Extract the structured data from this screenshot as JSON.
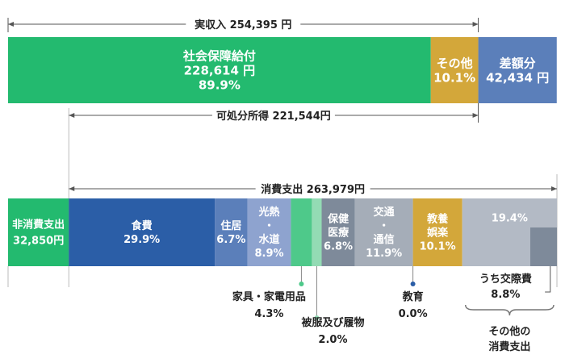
{
  "chart_data": {
    "type": "bar",
    "income": {
      "title": "実収入 254,395 円",
      "disposable_label": "可処分所得 221,544円",
      "segments": [
        {
          "key": "social",
          "lines": [
            "社会保障給付",
            "228,614 円",
            "89.9%"
          ],
          "value": 228614,
          "percent": 89.9,
          "color": "#23ba6f",
          "text_color": "#ffffff"
        },
        {
          "key": "other_income",
          "lines": [
            "その他",
            "10.1%"
          ],
          "percent": 10.1,
          "color": "#d3a73a",
          "text_color": "#ffffff"
        },
        {
          "key": "deficit",
          "lines": [
            "差額分",
            "42,434 円"
          ],
          "value": 42434,
          "color": "#5b7fba",
          "text_color": "#ffffff"
        }
      ]
    },
    "expenditure": {
      "title": "消費支出 263,979円",
      "segments": [
        {
          "key": "non_consumption",
          "lines": [
            "非消費支出",
            "32,850円"
          ],
          "value": 32850,
          "color": "#23ba6f",
          "text_color": "#ffffff"
        },
        {
          "key": "food",
          "lines": [
            "食費",
            "29.9%"
          ],
          "percent": 29.9,
          "color": "#2b5ea7",
          "text_color": "#ffffff"
        },
        {
          "key": "housing",
          "lines": [
            "住居",
            "6.7%"
          ],
          "percent": 6.7,
          "color": "#5b7fba",
          "text_color": "#ffffff"
        },
        {
          "key": "utilities",
          "lines": [
            "光熱",
            "・",
            "水道",
            "8.9%"
          ],
          "percent": 8.9,
          "color": "#8ea3cf",
          "text_color": "#ffffff"
        },
        {
          "key": "furniture",
          "lines": [],
          "percent": 4.3,
          "color": "#4ec98a",
          "text_color": "#ffffff"
        },
        {
          "key": "clothing",
          "lines": [],
          "percent": 2.0,
          "color": "#93dbb4",
          "text_color": "#ffffff"
        },
        {
          "key": "health",
          "lines": [
            "保健",
            "医療",
            "6.8%"
          ],
          "percent": 6.8,
          "color": "#7e8a9a",
          "text_color": "#ffffff"
        },
        {
          "key": "transport",
          "lines": [
            "交通",
            "・",
            "通信",
            "11.9%"
          ],
          "percent": 11.9,
          "color": "#a5adb8",
          "text_color": "#ffffff"
        },
        {
          "key": "education",
          "lines": [],
          "percent": 0.0,
          "color": "#2b5ea7",
          "text_color": "#ffffff"
        },
        {
          "key": "recreation",
          "lines": [
            "教養",
            "娯楽",
            "10.1%"
          ],
          "percent": 10.1,
          "color": "#d3a73a",
          "text_color": "#ffffff"
        },
        {
          "key": "other_consumption",
          "lines": [
            "19.4%"
          ],
          "percent": 19.4,
          "color": "#b3bac5",
          "text_color": "#ffffff"
        }
      ],
      "sub_segment": {
        "parent": "other_consumption",
        "lines": [
          "うち交際費",
          "8.8%"
        ],
        "percent": 8.8,
        "color": "#7e8a9a"
      },
      "callouts": [
        {
          "target": "furniture",
          "lines": [
            "家具・家電用品",
            "4.3%"
          ]
        },
        {
          "target": "clothing",
          "lines": [
            "被服及び履物",
            "2.0%"
          ]
        },
        {
          "target": "education",
          "lines": [
            "教育",
            "0.0%"
          ]
        }
      ],
      "brace_label": [
        "その他の",
        "消費支出"
      ]
    }
  }
}
